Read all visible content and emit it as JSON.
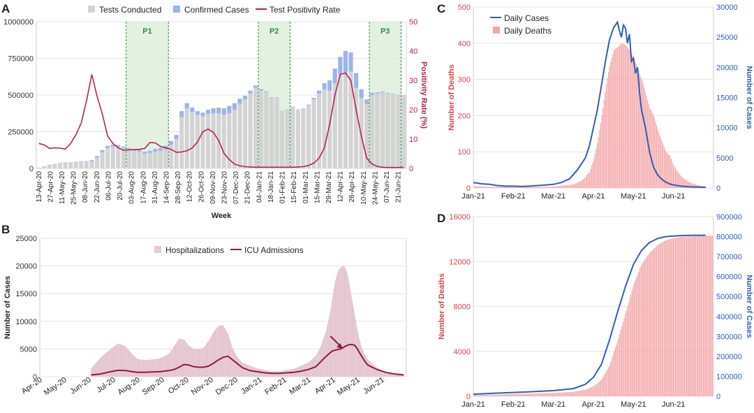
{
  "colors": {
    "tests": "#d3d3d3",
    "confirmed": "#9db4ec",
    "positivity": "#b3244f",
    "hosp": "#e8c9d3",
    "icu": "#8b1e3f",
    "deaths": "#f4a7a9",
    "cases": "#2f5db8",
    "period_fill": "#d9ecd5",
    "period_line": "#2e8b3d",
    "death_axis": "#d9434a",
    "case_axis": "#2f5db8",
    "grid": "#e3e3e3"
  },
  "chart_data": [
    {
      "panel": "A",
      "type": "bar",
      "xlabel": "Week",
      "ylabel_left": "",
      "ylabel_right": "Positivity Rate (%)",
      "ylim_left": [
        0,
        1000000
      ],
      "yticks_left": [
        "0",
        "250000",
        "500000",
        "750000",
        "1000000"
      ],
      "ylim_right": [
        0,
        50
      ],
      "yticks_right": [
        "0",
        "10",
        "20",
        "30",
        "40",
        "50"
      ],
      "legend": [
        "Tests Conducted",
        "Confirmed Cases",
        "Test Positivity Rate"
      ],
      "legend_position": "top",
      "grid": true,
      "tick_labels": [
        "13-Apr-20",
        "27-Apr-20",
        "11-May-20",
        "25-May-20",
        "08-Jun-20",
        "22-Jun-20",
        "06-Jul-20",
        "20-Jul-20",
        "03-Aug-20",
        "17-Aug-20",
        "31-Aug-20",
        "14-Sep-20",
        "28-Sep-20",
        "12-Oct-20",
        "26-Oct-20",
        "09-Nov-20",
        "23-Nov-20",
        "07-Dec-20",
        "21-Dec-20",
        "04-Jan-21",
        "18-Jan-21",
        "01-Feb-21",
        "15-Feb-21",
        "01-Mar-21",
        "15-Mar-21",
        "29-Mar-21",
        "12-Apr-21",
        "26-Apr-21",
        "10-May-21",
        "24-May-21",
        "07-Jun-21",
        "21-Jun-21"
      ],
      "periods": [
        {
          "label": "P1",
          "start_week": 17,
          "end_week": 25
        },
        {
          "label": "P2",
          "start_week": 42,
          "end_week": 48
        },
        {
          "label": "P3",
          "start_week": 63,
          "end_week": 69
        }
      ],
      "tests": [
        5000,
        15000,
        25000,
        30000,
        38000,
        42000,
        40000,
        44000,
        46000,
        45000,
        50000,
        75000,
        110000,
        140000,
        150000,
        150000,
        140000,
        130000,
        120000,
        115000,
        100000,
        105000,
        115000,
        120000,
        130000,
        160000,
        200000,
        350000,
        410000,
        385000,
        365000,
        355000,
        370000,
        375000,
        375000,
        365000,
        375000,
        400000,
        440000,
        470000,
        510000,
        550000,
        530000,
        520000,
        480000,
        480000,
        390000,
        400000,
        420000,
        400000,
        405000,
        430000,
        470000,
        510000,
        540000,
        530000,
        580000,
        640000,
        650000,
        660000,
        550000,
        480000,
        440000,
        500000,
        510000,
        520000,
        510000,
        505000,
        500000,
        500000
      ],
      "confirmed": [
        100,
        200,
        400,
        600,
        800,
        1000,
        1500,
        2000,
        3000,
        4000,
        7000,
        10000,
        15000,
        14000,
        12000,
        10000,
        9000,
        8000,
        9000,
        11000,
        13000,
        15000,
        18000,
        20000,
        24000,
        27000,
        28000,
        40000,
        35000,
        30000,
        25000,
        25000,
        30000,
        35000,
        40000,
        45000,
        50000,
        45000,
        35000,
        25000,
        20000,
        15000,
        10000,
        5000,
        4000,
        3000,
        2000,
        2000,
        2000,
        2000,
        3000,
        5000,
        10000,
        20000,
        40000,
        70000,
        100000,
        120000,
        150000,
        130000,
        100000,
        60000,
        30000,
        15000,
        8000,
        5000,
        4000,
        3000,
        2000,
        1500
      ],
      "positivity": [
        8.5,
        8.0,
        6.8,
        7.0,
        6.9,
        6.6,
        8.5,
        11.5,
        15.5,
        23.0,
        32.0,
        24.5,
        18.5,
        11.0,
        8.5,
        7.0,
        6.2,
        6.3,
        6.4,
        6.5,
        6.8,
        8.8,
        8.7,
        7.5,
        7.0,
        6.5,
        5.5,
        5.6,
        6.0,
        7.0,
        9.0,
        12.5,
        13.4,
        12.3,
        9.5,
        5.2,
        3.0,
        1.5,
        0.9,
        0.6,
        0.5,
        0.4,
        0.4,
        0.4,
        0.4,
        0.4,
        0.4,
        0.4,
        0.4,
        0.5,
        0.6,
        1.0,
        1.8,
        3.5,
        7.0,
        15.0,
        25.0,
        32.0,
        32.5,
        30.0,
        20.0,
        11.0,
        3.5,
        1.5,
        0.7,
        0.4,
        0.3,
        0.3,
        0.3,
        0.3
      ]
    },
    {
      "panel": "B",
      "type": "area",
      "ylabel": "Number of Cases",
      "ylim": [
        0,
        25000
      ],
      "yticks": [
        "0",
        "5000",
        "10000",
        "15000",
        "20000",
        "25000"
      ],
      "legend": [
        "Hospitalizations",
        "ICU Admissions"
      ],
      "legend_position": "top",
      "grid": true,
      "tick_labels": [
        "Apr-20",
        "May-20",
        "Jun-20",
        "Jul-20",
        "Aug-20",
        "Sep-20",
        "Oct-20",
        "Nov-20",
        "Dec-20",
        "Jan-21",
        "Feb-21",
        "Mar-21",
        "Apr-21",
        "May-21",
        "Jun-21"
      ],
      "x": [
        2.1,
        2.5,
        2.9,
        3.2,
        3.5,
        3.8,
        4.0,
        4.3,
        4.6,
        4.9,
        5.1,
        5.3,
        5.5,
        5.7,
        5.9,
        6.1,
        6.3,
        6.5,
        6.7,
        6.9,
        7.1,
        7.3,
        7.5,
        7.7,
        7.9,
        8.1,
        8.3,
        8.6,
        8.9,
        9.2,
        9.5,
        9.8,
        10.1,
        10.4,
        10.7,
        11.0,
        11.3,
        11.5,
        11.7,
        11.9,
        12.0,
        12.1,
        12.2,
        12.3,
        12.4,
        12.5,
        12.6,
        12.7,
        12.8,
        12.9,
        13.0,
        13.1,
        13.2,
        13.3,
        13.4,
        13.55,
        13.7,
        13.85,
        14.0,
        14.15,
        14.3,
        14.5,
        14.7,
        14.9
      ],
      "hospitalizations": [
        1500,
        3500,
        5000,
        6000,
        5500,
        4000,
        3200,
        3000,
        3100,
        3300,
        3700,
        4200,
        5500,
        6900,
        6700,
        5600,
        5000,
        5000,
        5200,
        6400,
        8000,
        9200,
        9300,
        7800,
        5000,
        3500,
        2500,
        2000,
        1500,
        1200,
        1000,
        1000,
        1200,
        1400,
        2000,
        2600,
        3800,
        5500,
        8000,
        12000,
        15000,
        17500,
        19000,
        19700,
        20000,
        19700,
        18500,
        16000,
        13500,
        11000,
        8500,
        6500,
        5000,
        4000,
        3200,
        2600,
        2000,
        1500,
        1200,
        900,
        700,
        500,
        350,
        250
      ],
      "icu": [
        300,
        500,
        900,
        1150,
        1100,
        900,
        800,
        800,
        850,
        900,
        1000,
        1100,
        1300,
        1700,
        2200,
        2100,
        1800,
        1700,
        1700,
        1900,
        2400,
        3000,
        3500,
        3700,
        3000,
        2300,
        1600,
        1100,
        900,
        700,
        600,
        600,
        700,
        800,
        1000,
        1300,
        1800,
        2700,
        3600,
        4400,
        4700,
        4800,
        4900,
        5000,
        5200,
        5500,
        5700,
        5800,
        5800,
        5600,
        5000,
        4200,
        3500,
        2800,
        2200,
        1800,
        1500,
        1200,
        1000,
        800,
        650,
        500,
        400,
        300
      ],
      "annotation_arrow_x": 12.35
    },
    {
      "panel": "C",
      "type": "line",
      "ylabel_left": "Number of Deaths",
      "ylabel_right": "Number of Cases",
      "ylim_left": [
        0,
        500
      ],
      "yticks_left": [
        "0",
        "100",
        "200",
        "300",
        "400",
        "500"
      ],
      "ylim_right": [
        0,
        30000
      ],
      "yticks_right": [
        "0",
        "5000",
        "10000",
        "15000",
        "20000",
        "25000",
        "30000"
      ],
      "legend": [
        "Daily Cases",
        "Daily Deaths"
      ],
      "legend_position": "top-left",
      "grid": true,
      "tick_labels": [
        "Jan-21",
        "Feb-21",
        "Mar-21",
        "Apr-21",
        "May-21",
        "Jun-21"
      ],
      "cases_x": [
        0,
        0.2,
        0.4,
        0.6,
        0.8,
        1.0,
        1.2,
        1.4,
        1.6,
        1.8,
        2.0,
        2.2,
        2.4,
        2.6,
        2.8,
        2.9,
        3.0,
        3.1,
        3.2,
        3.3,
        3.4,
        3.5,
        3.6,
        3.65,
        3.7,
        3.75,
        3.8,
        3.85,
        3.9,
        3.95,
        4.0,
        4.05,
        4.1,
        4.15,
        4.2,
        4.3,
        4.4,
        4.5,
        4.6,
        4.7,
        4.8,
        4.9,
        5.0,
        5.2,
        5.4,
        5.6,
        5.8
      ],
      "cases": [
        900,
        700,
        600,
        400,
        300,
        300,
        250,
        300,
        400,
        500,
        600,
        900,
        1500,
        3000,
        5000,
        7000,
        10000,
        13000,
        17000,
        21000,
        24500,
        26500,
        27500,
        26000,
        25000,
        27000,
        26500,
        24000,
        25500,
        21000,
        21500,
        19000,
        20000,
        16000,
        13000,
        10000,
        6000,
        3500,
        2200,
        1500,
        1000,
        700,
        500,
        300,
        200,
        150,
        100
      ],
      "deaths_x": [
        0,
        0.5,
        1.0,
        1.5,
        2.0,
        2.5,
        2.7,
        2.9,
        3.0,
        3.1,
        3.2,
        3.3,
        3.4,
        3.5,
        3.6,
        3.7,
        3.8,
        3.9,
        4.0,
        4.1,
        4.2,
        4.3,
        4.4,
        4.5,
        4.6,
        4.7,
        4.8,
        4.9,
        5.0,
        5.2,
        5.4,
        5.6,
        5.8
      ],
      "deaths": [
        5,
        3,
        3,
        3,
        4,
        10,
        20,
        45,
        80,
        130,
        200,
        280,
        340,
        380,
        390,
        400,
        395,
        380,
        360,
        330,
        300,
        260,
        220,
        200,
        160,
        130,
        100,
        90,
        60,
        30,
        15,
        8,
        4
      ]
    },
    {
      "panel": "D",
      "type": "line",
      "ylabel_left": "Number of Deaths",
      "ylabel_right": "Number of Cases",
      "ylim_left": [
        0,
        16000
      ],
      "yticks_left": [
        "0",
        "4000",
        "8000",
        "12000",
        "16000"
      ],
      "ylim_right": [
        0,
        900000
      ],
      "yticks_right": [
        "0",
        "100000",
        "200000",
        "300000",
        "400000",
        "500000",
        "600000",
        "700000",
        "800000",
        "900000"
      ],
      "grid": true,
      "tick_labels": [
        "Jan-21",
        "Feb-21",
        "Mar-21",
        "Apr-21",
        "May-21",
        "Jun-21"
      ],
      "x": [
        0,
        0.5,
        1.0,
        1.5,
        2.0,
        2.5,
        2.8,
        3.0,
        3.2,
        3.4,
        3.6,
        3.8,
        4.0,
        4.2,
        4.4,
        4.6,
        4.8,
        5.0,
        5.2,
        5.5,
        5.8
      ],
      "cum_cases": [
        10000,
        15000,
        19000,
        23000,
        28000,
        38000,
        60000,
        95000,
        160000,
        280000,
        420000,
        550000,
        660000,
        730000,
        770000,
        790000,
        800000,
        803000,
        805000,
        806000,
        807000
      ],
      "cum_deaths": [
        100,
        150,
        200,
        250,
        300,
        400,
        600,
        900,
        1500,
        2800,
        5000,
        7500,
        10000,
        11800,
        12800,
        13500,
        13900,
        14100,
        14200,
        14250,
        14300
      ]
    }
  ],
  "panel_labels": {
    "a": "A",
    "b": "B",
    "c": "C",
    "d": "D"
  }
}
